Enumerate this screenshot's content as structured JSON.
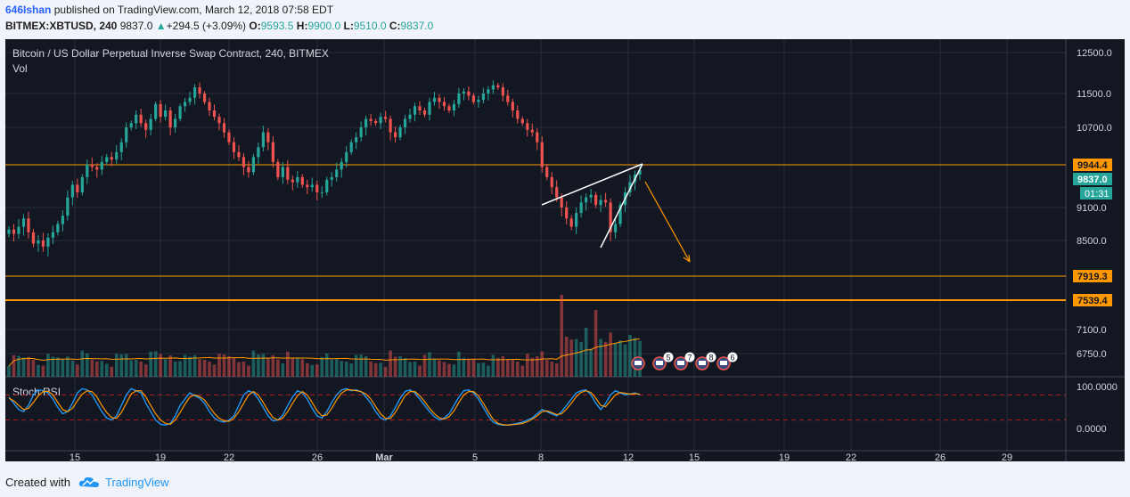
{
  "header": {
    "author": "646Ishan",
    "published": "published on TradingView.com, March 12, 2018 07:58 EDT",
    "symbol": "BITMEX:XBTUSD, 240",
    "last": "9837.0",
    "change": "+294.5 (+3.09%)",
    "o_label": "O:",
    "o": "9593.5",
    "h_label": "H:",
    "h": "9900.0",
    "l_label": "L:",
    "l": "9510.0",
    "c_label": "C:",
    "c": "9837.0"
  },
  "footer": {
    "created": "Created with",
    "brand": "TradingView"
  },
  "chart_data": {
    "type": "candlestick",
    "title": "Bitcoin / US Dollar Perpetual Inverse Swap Contract, 240, BITMEX",
    "volume_label": "Vol",
    "indicator_label": "Stoch RSI",
    "colors": {
      "up": "#26a69a",
      "down": "#ef5350",
      "vol_up": "#26a69a",
      "vol_down": "#ef5350",
      "vol_ma": "#ff9800",
      "k_line": "#2196f3",
      "d_line": "#ff9800",
      "level": "#ff9800",
      "background": "#131722",
      "grid": "#2a2e39",
      "price_tag_bg": "#ff9800",
      "last_tag_bg": "#26a69a"
    },
    "x_ticks": [
      "15",
      "19",
      "22",
      "26",
      "Mar",
      "5",
      "8",
      "12",
      "15",
      "19",
      "22",
      "26",
      "29"
    ],
    "y_ticks": [
      "12500.0",
      "11500.0",
      "10700.0",
      "9100.0",
      "8500.0",
      "7100.0",
      "6750.0"
    ],
    "stoch_ticks": [
      "100.0000",
      "0.0000"
    ],
    "levels": [
      {
        "value": 9944.4,
        "label": "9944.4"
      },
      {
        "value": 7919.3,
        "label": "7919.3"
      },
      {
        "value": 7539.4,
        "label": "7539.4"
      }
    ],
    "last_price": {
      "value": 9837.0,
      "label": "9837.0",
      "countdown": "01:31"
    },
    "event_badges": [
      "",
      "5",
      "7",
      "8",
      "6"
    ],
    "closes": [
      8700,
      8620,
      8750,
      8900,
      8650,
      8450,
      8500,
      8400,
      8550,
      8650,
      8800,
      8950,
      9300,
      9550,
      9400,
      9700,
      9950,
      9900,
      9850,
      10000,
      10100,
      10050,
      10200,
      10400,
      10700,
      10800,
      11000,
      10800,
      10650,
      10900,
      11250,
      10950,
      11100,
      10700,
      10900,
      11200,
      11300,
      11400,
      11650,
      11500,
      11300,
      11100,
      10950,
      10800,
      10600,
      10400,
      10200,
      10100,
      9900,
      9800,
      10100,
      10300,
      10600,
      10400,
      10000,
      9700,
      9900,
      9650,
      9600,
      9700,
      9550,
      9500,
      9550,
      9400,
      9400,
      9650,
      9700,
      9850,
      10000,
      10200,
      10400,
      10500,
      10700,
      10900,
      10850,
      10800,
      10950,
      10900,
      10600,
      10500,
      10700,
      10900,
      11000,
      11200,
      11100,
      11000,
      11300,
      11400,
      11300,
      11200,
      11100,
      11250,
      11500,
      11550,
      11450,
      11300,
      11350,
      11500,
      11600,
      11700,
      11650,
      11450,
      11300,
      11100,
      10900,
      10800,
      10650,
      10600,
      10400,
      9900,
      9700,
      9500,
      9300,
      9100,
      8900,
      8750,
      9000,
      9200,
      9300,
      9350,
      9150,
      9250,
      9200,
      8650,
      8800,
      9150,
      9400,
      9600,
      9750,
      9837
    ],
    "stoch_k": [
      75,
      60,
      45,
      40,
      55,
      80,
      92,
      90,
      85,
      70,
      50,
      35,
      40,
      60,
      85,
      95,
      92,
      80,
      60,
      40,
      25,
      20,
      30,
      55,
      80,
      95,
      90,
      85,
      60,
      40,
      20,
      10,
      8,
      12,
      30,
      55,
      70,
      85,
      78,
      72,
      60,
      40,
      25,
      18,
      15,
      20,
      30,
      55,
      80,
      90,
      85,
      70,
      50,
      30,
      18,
      20,
      32,
      55,
      75,
      90,
      85,
      70,
      48,
      30,
      25,
      40,
      62,
      80,
      92,
      95,
      90,
      92,
      88,
      75,
      60,
      40,
      25,
      20,
      30,
      50,
      72,
      88,
      92,
      85,
      70,
      55,
      40,
      28,
      20,
      25,
      35,
      55,
      75,
      90,
      92,
      85,
      70,
      50,
      30,
      15,
      10,
      8,
      8,
      10,
      12,
      15,
      20,
      25,
      35,
      45,
      40,
      35,
      30,
      40,
      55,
      70,
      85,
      90,
      92,
      80,
      60,
      45,
      60,
      80,
      90,
      85,
      80,
      82,
      85,
      80
    ],
    "stoch_d": [
      72,
      66,
      55,
      45,
      48,
      62,
      78,
      88,
      89,
      80,
      62,
      45,
      40,
      48,
      66,
      82,
      90,
      88,
      75,
      55,
      38,
      26,
      24,
      38,
      60,
      82,
      90,
      90,
      75,
      55,
      35,
      20,
      12,
      10,
      20,
      38,
      58,
      75,
      80,
      76,
      68,
      52,
      36,
      24,
      18,
      17,
      24,
      40,
      60,
      80,
      88,
      80,
      62,
      42,
      26,
      20,
      25,
      40,
      60,
      78,
      88,
      80,
      62,
      42,
      30,
      32,
      48,
      68,
      84,
      92,
      92,
      90,
      88,
      82,
      70,
      52,
      35,
      24,
      24,
      38,
      58,
      78,
      88,
      88,
      78,
      64,
      48,
      35,
      25,
      22,
      28,
      42,
      62,
      80,
      88,
      88,
      78,
      60,
      40,
      22,
      12,
      9,
      8,
      9,
      10,
      12,
      16,
      22,
      30,
      40,
      42,
      38,
      33,
      35,
      46,
      60,
      76,
      86,
      90,
      86,
      72,
      55,
      52,
      66,
      80,
      86,
      84,
      82,
      83,
      82
    ]
  }
}
